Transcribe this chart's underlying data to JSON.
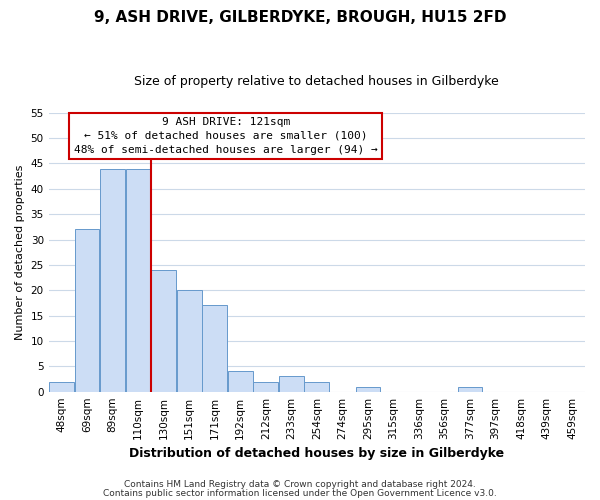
{
  "title": "9, ASH DRIVE, GILBERDYKE, BROUGH, HU15 2FD",
  "subtitle": "Size of property relative to detached houses in Gilberdyke",
  "xlabel": "Distribution of detached houses by size in Gilberdyke",
  "ylabel": "Number of detached properties",
  "bin_labels": [
    "48sqm",
    "69sqm",
    "89sqm",
    "110sqm",
    "130sqm",
    "151sqm",
    "171sqm",
    "192sqm",
    "212sqm",
    "233sqm",
    "254sqm",
    "274sqm",
    "295sqm",
    "315sqm",
    "336sqm",
    "356sqm",
    "377sqm",
    "397sqm",
    "418sqm",
    "439sqm",
    "459sqm"
  ],
  "bar_heights": [
    2,
    32,
    44,
    44,
    24,
    20,
    17,
    4,
    2,
    3,
    2,
    0,
    1,
    0,
    0,
    0,
    1,
    0,
    0,
    0,
    0
  ],
  "bar_color": "#ccddf5",
  "bar_edge_color": "#6699cc",
  "vline_color": "#cc0000",
  "ylim": [
    0,
    55
  ],
  "yticks": [
    0,
    5,
    10,
    15,
    20,
    25,
    30,
    35,
    40,
    45,
    50,
    55
  ],
  "annotation_title": "9 ASH DRIVE: 121sqm",
  "annotation_line1": "← 51% of detached houses are smaller (100)",
  "annotation_line2": "48% of semi-detached houses are larger (94) →",
  "annotation_box_color": "#ffffff",
  "annotation_box_edge": "#cc0000",
  "footer1": "Contains HM Land Registry data © Crown copyright and database right 2024.",
  "footer2": "Contains public sector information licensed under the Open Government Licence v3.0.",
  "background_color": "#ffffff",
  "grid_color": "#ccd9e8",
  "title_fontsize": 11,
  "subtitle_fontsize": 9,
  "xlabel_fontsize": 9,
  "ylabel_fontsize": 8,
  "tick_fontsize": 7.5,
  "ann_fontsize": 8,
  "footer_fontsize": 6.5
}
